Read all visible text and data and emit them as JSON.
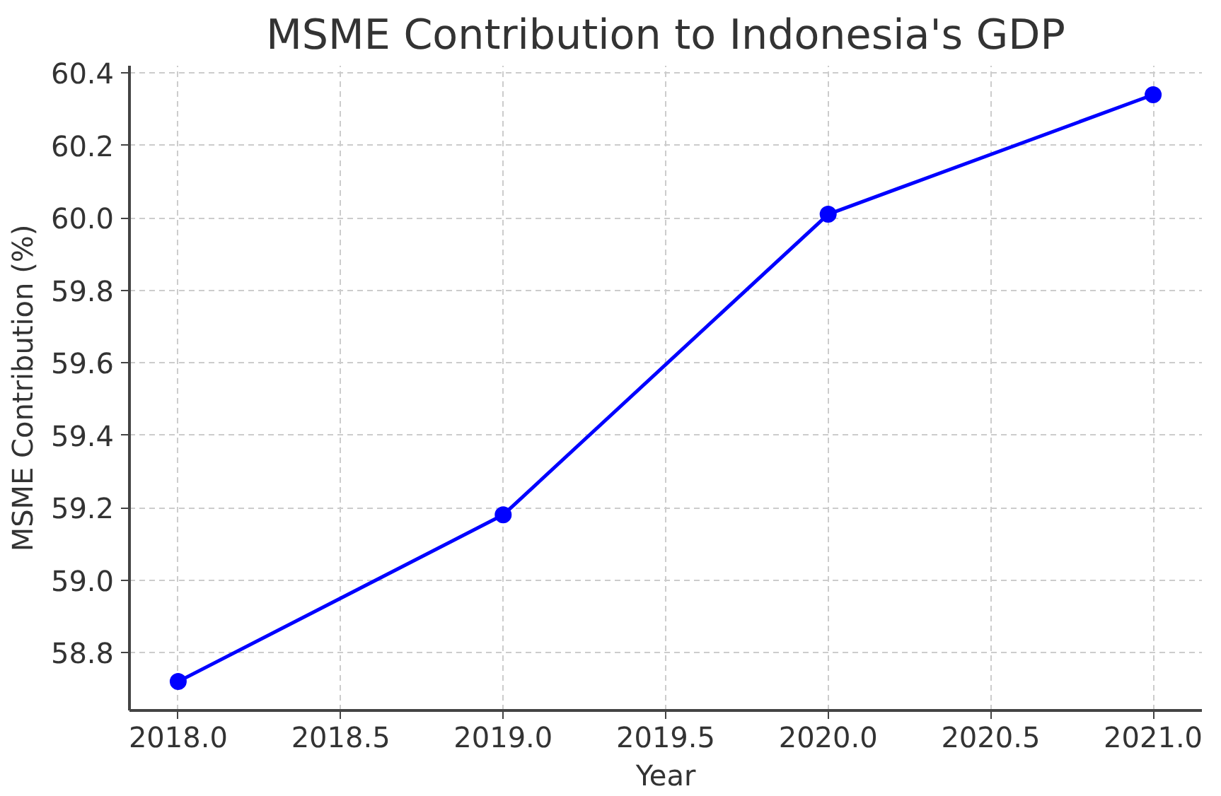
{
  "chart_data": {
    "type": "line",
    "title": "MSME Contribution to Indonesia's GDP",
    "xlabel": "Year",
    "ylabel": "MSME Contribution (%)",
    "x": [
      2018,
      2019,
      2020,
      2021
    ],
    "series": [
      {
        "color": "#0000ff",
        "values": [
          58.72,
          59.18,
          60.01,
          60.34
        ]
      }
    ],
    "xlim": [
      2017.85,
      2021.15
    ],
    "ylim": [
      58.64,
      60.42
    ],
    "xticks": [
      {
        "value": 2018,
        "label": "2018.0"
      },
      {
        "value": 2018.5,
        "label": "2018.5"
      },
      {
        "value": 2019,
        "label": "2019.0"
      },
      {
        "value": 2019.5,
        "label": "2019.5"
      },
      {
        "value": 2020,
        "label": "2020.0"
      },
      {
        "value": 2020.5,
        "label": "2020.5"
      },
      {
        "value": 2021,
        "label": "2021.0"
      }
    ],
    "yticks": [
      {
        "value": 58.8,
        "label": "58.8"
      },
      {
        "value": 59.0,
        "label": "59.0"
      },
      {
        "value": 59.2,
        "label": "59.2"
      },
      {
        "value": 59.4,
        "label": "59.4"
      },
      {
        "value": 59.6,
        "label": "59.6"
      },
      {
        "value": 59.8,
        "label": "59.8"
      },
      {
        "value": 60.0,
        "label": "60.0"
      },
      {
        "value": 60.2,
        "label": "60.2"
      },
      {
        "value": 60.4,
        "label": "60.4"
      }
    ],
    "grid": true,
    "marker": "circle",
    "line_style": "solid"
  }
}
